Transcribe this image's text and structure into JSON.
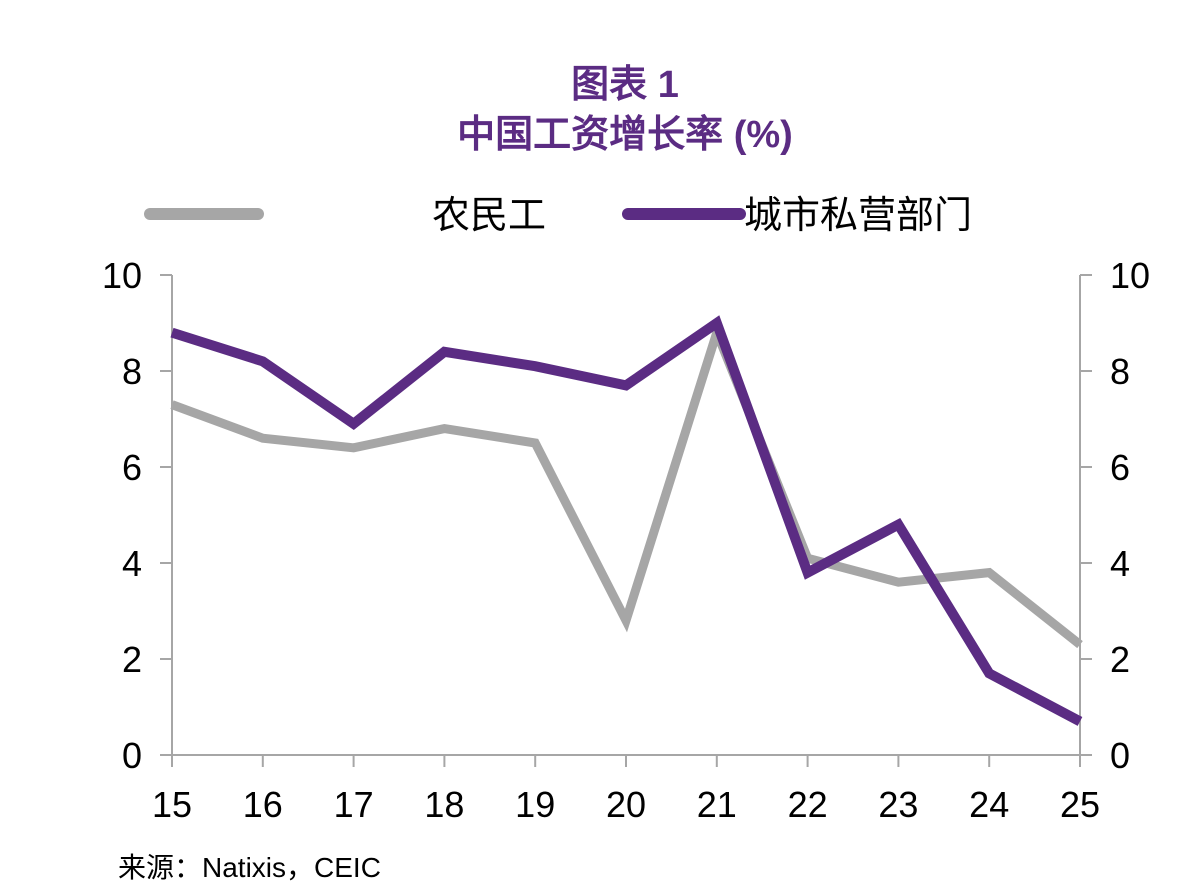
{
  "chart_data": {
    "type": "line",
    "title_line1": "图表 1",
    "title_line2": "中国工资增长率 (%)",
    "categories": [
      "15",
      "16",
      "17",
      "18",
      "19",
      "20",
      "21",
      "22",
      "23",
      "24",
      "25"
    ],
    "series": [
      {
        "name": "农民工",
        "color": "#a6a6a6",
        "values": [
          7.3,
          6.6,
          6.4,
          6.8,
          6.5,
          2.8,
          8.8,
          4.1,
          3.6,
          3.8,
          2.3
        ]
      },
      {
        "name": "城市私营部门",
        "color": "#5b2c83",
        "values": [
          8.8,
          8.2,
          6.9,
          8.4,
          8.1,
          7.7,
          9.0,
          3.8,
          4.8,
          1.7,
          0.7
        ]
      }
    ],
    "ylim": [
      0,
      10
    ],
    "yticks": [
      "0",
      "2",
      "4",
      "6",
      "8",
      "10"
    ],
    "xlabel": "",
    "ylabel": "",
    "source": "来源：Natixis，CEIC"
  }
}
